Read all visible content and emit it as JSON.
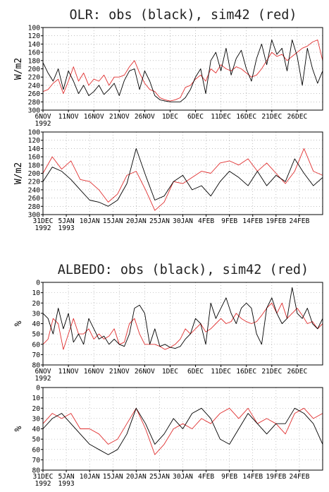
{
  "titles": {
    "olr": "OLR: obs (black), sim42 (red)",
    "albedo": "ALBEDO: obs (black), sim42 (red)"
  },
  "colors": {
    "obs": "#000000",
    "sim": "#e03030"
  },
  "chart_data": [
    {
      "id": "olr_nov",
      "type": "line",
      "title": "OLR: obs (black), sim42 (red)",
      "ylabel": "W/m2",
      "y_reversed": true,
      "ylim": [
        300,
        100
      ],
      "yticks": [
        "100",
        "120",
        "140",
        "160",
        "180",
        "200",
        "220",
        "240",
        "260",
        "280",
        "300"
      ],
      "xlim": [
        0,
        55
      ],
      "xticks": [
        {
          "x": 0,
          "line1": "6NOV",
          "line2": "1992"
        },
        {
          "x": 5,
          "line1": "11NOV",
          "line2": ""
        },
        {
          "x": 10,
          "line1": "16NOV",
          "line2": ""
        },
        {
          "x": 15,
          "line1": "21NOV",
          "line2": ""
        },
        {
          "x": 20,
          "line1": "26NOV",
          "line2": ""
        },
        {
          "x": 25,
          "line1": "1DEC",
          "line2": ""
        },
        {
          "x": 30,
          "line1": "6DEC",
          "line2": ""
        },
        {
          "x": 35,
          "line1": "11DEC",
          "line2": ""
        },
        {
          "x": 40,
          "line1": "16DEC",
          "line2": ""
        },
        {
          "x": 45,
          "line1": "21DEC",
          "line2": ""
        },
        {
          "x": 50,
          "line1": "26DEC",
          "line2": ""
        }
      ],
      "grid": true,
      "series": [
        {
          "x": [
            0,
            1,
            2,
            3,
            4,
            5,
            6,
            7,
            8,
            9,
            10,
            11,
            12,
            13,
            14,
            15,
            16,
            17,
            18,
            19,
            20,
            21,
            22,
            23,
            24,
            25,
            26,
            27,
            28,
            29,
            30,
            31,
            32,
            33,
            34,
            35,
            36,
            37,
            38,
            39,
            40,
            41,
            42,
            43,
            44,
            45,
            46,
            47,
            48,
            49,
            50,
            51,
            52,
            53,
            54,
            55
          ],
          "y": [
            185,
            210,
            230,
            200,
            250,
            205,
            230,
            260,
            240,
            265,
            255,
            240,
            262,
            250,
            235,
            265,
            228,
            205,
            200,
            250,
            205,
            230,
            265,
            275,
            278,
            280,
            280,
            280,
            270,
            250,
            220,
            200,
            260,
            180,
            160,
            205,
            150,
            215,
            175,
            155,
            200,
            230,
            175,
            140,
            190,
            130,
            165,
            150,
            205,
            130,
            170,
            240,
            150,
            200,
            235,
            205
          ]
        },
        {
          "x": [
            0,
            1,
            2,
            3,
            4,
            5,
            6,
            7,
            8,
            9,
            10,
            11,
            12,
            13,
            14,
            15,
            16,
            17,
            18,
            19,
            20,
            21,
            22,
            23,
            24,
            25,
            26,
            27,
            28,
            29,
            30,
            31,
            32,
            33,
            34,
            35,
            36,
            37,
            38,
            39,
            40,
            41,
            42,
            43,
            44,
            45,
            46,
            47,
            48,
            49,
            50,
            51,
            52,
            53,
            54,
            55
          ],
          "y": [
            255,
            250,
            235,
            225,
            260,
            230,
            195,
            230,
            210,
            240,
            225,
            230,
            215,
            240,
            220,
            220,
            215,
            195,
            180,
            210,
            235,
            250,
            255,
            270,
            275,
            278,
            275,
            270,
            245,
            240,
            225,
            215,
            230,
            200,
            210,
            190,
            200,
            205,
            195,
            200,
            210,
            220,
            215,
            200,
            180,
            160,
            170,
            165,
            180,
            170,
            160,
            150,
            145,
            135,
            130,
            180
          ]
        }
      ]
    },
    {
      "id": "olr_jan",
      "type": "line",
      "ylabel": "W/m2",
      "y_reversed": true,
      "ylim": [
        300,
        100
      ],
      "yticks": [
        "100",
        "120",
        "140",
        "160",
        "180",
        "200",
        "220",
        "240",
        "260",
        "280",
        "300"
      ],
      "xlim": [
        0,
        60
      ],
      "xticks": [
        {
          "x": 0,
          "line1": "31DEC",
          "line2": "1992"
        },
        {
          "x": 5,
          "line1": "5JAN",
          "line2": "1993"
        },
        {
          "x": 10,
          "line1": "10JAN",
          "line2": ""
        },
        {
          "x": 15,
          "line1": "15JAN",
          "line2": ""
        },
        {
          "x": 20,
          "line1": "20JAN",
          "line2": ""
        },
        {
          "x": 25,
          "line1": "25JAN",
          "line2": ""
        },
        {
          "x": 30,
          "line1": "30JAN",
          "line2": ""
        },
        {
          "x": 35,
          "line1": "4FEB",
          "line2": ""
        },
        {
          "x": 40,
          "line1": "9FEB",
          "line2": ""
        },
        {
          "x": 45,
          "line1": "14FEB",
          "line2": ""
        },
        {
          "x": 50,
          "line1": "19FEB",
          "line2": ""
        },
        {
          "x": 55,
          "line1": "24FEB",
          "line2": ""
        }
      ],
      "grid": true,
      "series": [
        {
          "x": [
            0,
            2,
            4,
            6,
            8,
            10,
            12,
            14,
            16,
            18,
            20,
            22,
            24,
            26,
            28,
            30,
            32,
            34,
            36,
            38,
            40,
            42,
            44,
            46,
            48,
            50,
            52,
            54,
            56,
            58,
            60
          ],
          "y": [
            220,
            185,
            195,
            215,
            240,
            265,
            270,
            280,
            265,
            225,
            140,
            205,
            265,
            255,
            220,
            205,
            240,
            230,
            255,
            220,
            195,
            210,
            230,
            195,
            230,
            205,
            220,
            165,
            200,
            230,
            210
          ]
        },
        {
          "x": [
            0,
            2,
            4,
            6,
            8,
            10,
            12,
            14,
            16,
            18,
            20,
            22,
            24,
            26,
            28,
            30,
            32,
            34,
            36,
            38,
            40,
            42,
            44,
            46,
            48,
            50,
            52,
            54,
            56,
            58,
            60
          ],
          "y": [
            200,
            160,
            190,
            170,
            215,
            220,
            240,
            270,
            250,
            205,
            195,
            240,
            290,
            270,
            220,
            225,
            210,
            195,
            200,
            175,
            170,
            180,
            165,
            195,
            175,
            200,
            225,
            195,
            140,
            195,
            205
          ]
        }
      ]
    },
    {
      "id": "albedo_nov",
      "type": "line",
      "title": "ALBEDO: obs (black), sim42 (red)",
      "ylabel": "%",
      "y_reversed": false,
      "ylim": [
        0,
        80
      ],
      "yticks": [
        "0",
        "10",
        "20",
        "30",
        "40",
        "50",
        "60",
        "70",
        "80"
      ],
      "xlim": [
        0,
        55
      ],
      "xticks": [
        {
          "x": 0,
          "line1": "6NOV",
          "line2": "1992"
        },
        {
          "x": 5,
          "line1": "11NOV",
          "line2": ""
        },
        {
          "x": 10,
          "line1": "16NOV",
          "line2": ""
        },
        {
          "x": 15,
          "line1": "21NOV",
          "line2": ""
        },
        {
          "x": 20,
          "line1": "26NOV",
          "line2": ""
        },
        {
          "x": 25,
          "line1": "1DEC",
          "line2": ""
        },
        {
          "x": 30,
          "line1": "6DEC",
          "line2": ""
        },
        {
          "x": 35,
          "line1": "11DEC",
          "line2": ""
        },
        {
          "x": 40,
          "line1": "16DEC",
          "line2": ""
        },
        {
          "x": 45,
          "line1": "21DEC",
          "line2": ""
        },
        {
          "x": 50,
          "line1": "26DEC",
          "line2": ""
        }
      ],
      "grid": true,
      "series": [
        {
          "x": [
            0,
            1,
            2,
            3,
            4,
            5,
            6,
            7,
            8,
            9,
            10,
            11,
            12,
            13,
            14,
            15,
            16,
            17,
            18,
            19,
            20,
            21,
            22,
            23,
            24,
            25,
            26,
            27,
            28,
            29,
            30,
            31,
            32,
            33,
            34,
            35,
            36,
            37,
            38,
            39,
            40,
            41,
            42,
            43,
            44,
            45,
            46,
            47,
            48,
            49,
            50,
            51,
            52,
            53,
            54,
            55
          ],
          "y": [
            50,
            45,
            30,
            55,
            35,
            50,
            22,
            30,
            20,
            45,
            35,
            25,
            28,
            20,
            25,
            20,
            18,
            30,
            55,
            58,
            50,
            20,
            35,
            18,
            20,
            17,
            16,
            18,
            25,
            30,
            45,
            40,
            20,
            60,
            45,
            55,
            65,
            50,
            40,
            55,
            60,
            55,
            30,
            20,
            55,
            65,
            50,
            40,
            45,
            75,
            50,
            45,
            55,
            40,
            35,
            45
          ]
        },
        {
          "x": [
            0,
            1,
            2,
            3,
            4,
            5,
            6,
            7,
            8,
            9,
            10,
            11,
            12,
            13,
            14,
            15,
            16,
            17,
            18,
            19,
            20,
            21,
            22,
            23,
            24,
            25,
            26,
            27,
            28,
            29,
            30,
            31,
            32,
            33,
            34,
            35,
            36,
            37,
            38,
            39,
            40,
            41,
            42,
            43,
            44,
            45,
            46,
            47,
            48,
            49,
            50,
            51,
            52,
            53,
            54,
            55
          ],
          "y": [
            20,
            25,
            45,
            40,
            15,
            30,
            45,
            30,
            30,
            35,
            25,
            30,
            25,
            28,
            35,
            20,
            22,
            40,
            45,
            30,
            20,
            20,
            20,
            18,
            15,
            17,
            20,
            25,
            35,
            30,
            35,
            40,
            32,
            35,
            40,
            45,
            40,
            42,
            50,
            45,
            42,
            40,
            42,
            48,
            55,
            60,
            50,
            60,
            45,
            50,
            55,
            48,
            40,
            42,
            35,
            40
          ]
        }
      ]
    },
    {
      "id": "albedo_jan",
      "type": "line",
      "ylabel": "%",
      "y_reversed": false,
      "ylim": [
        0,
        80
      ],
      "yticks": [
        "0",
        "10",
        "20",
        "30",
        "40",
        "50",
        "60",
        "70",
        "80"
      ],
      "xlim": [
        0,
        60
      ],
      "xticks": [
        {
          "x": 0,
          "line1": "31DEC",
          "line2": "1992"
        },
        {
          "x": 5,
          "line1": "5JAN",
          "line2": "1993"
        },
        {
          "x": 10,
          "line1": "10JAN",
          "line2": ""
        },
        {
          "x": 15,
          "line1": "15JAN",
          "line2": ""
        },
        {
          "x": 20,
          "line1": "20JAN",
          "line2": ""
        },
        {
          "x": 25,
          "line1": "25JAN",
          "line2": ""
        },
        {
          "x": 30,
          "line1": "30JAN",
          "line2": ""
        },
        {
          "x": 35,
          "line1": "4FEB",
          "line2": ""
        },
        {
          "x": 40,
          "line1": "9FEB",
          "line2": ""
        },
        {
          "x": 45,
          "line1": "14FEB",
          "line2": ""
        },
        {
          "x": 50,
          "line1": "19FEB",
          "line2": ""
        },
        {
          "x": 55,
          "line1": "24FEB",
          "line2": ""
        }
      ],
      "grid": true,
      "series": [
        {
          "x": [
            0,
            2,
            4,
            6,
            8,
            10,
            12,
            14,
            16,
            18,
            20,
            22,
            24,
            26,
            28,
            30,
            32,
            34,
            36,
            38,
            40,
            42,
            44,
            46,
            48,
            50,
            52,
            54,
            56,
            58,
            60
          ],
          "y": [
            40,
            50,
            55,
            45,
            35,
            25,
            20,
            15,
            20,
            35,
            60,
            45,
            25,
            35,
            50,
            40,
            55,
            60,
            50,
            30,
            25,
            40,
            55,
            45,
            35,
            45,
            45,
            60,
            55,
            45,
            25
          ]
        },
        {
          "x": [
            0,
            2,
            4,
            6,
            8,
            10,
            12,
            14,
            16,
            18,
            20,
            22,
            24,
            26,
            28,
            30,
            32,
            34,
            36,
            38,
            40,
            42,
            44,
            46,
            48,
            50,
            52,
            54,
            56,
            58,
            60
          ],
          "y": [
            45,
            55,
            50,
            55,
            40,
            40,
            35,
            25,
            30,
            45,
            60,
            40,
            15,
            25,
            40,
            45,
            40,
            50,
            45,
            55,
            60,
            50,
            60,
            45,
            50,
            45,
            35,
            55,
            60,
            50,
            55
          ]
        }
      ]
    }
  ]
}
